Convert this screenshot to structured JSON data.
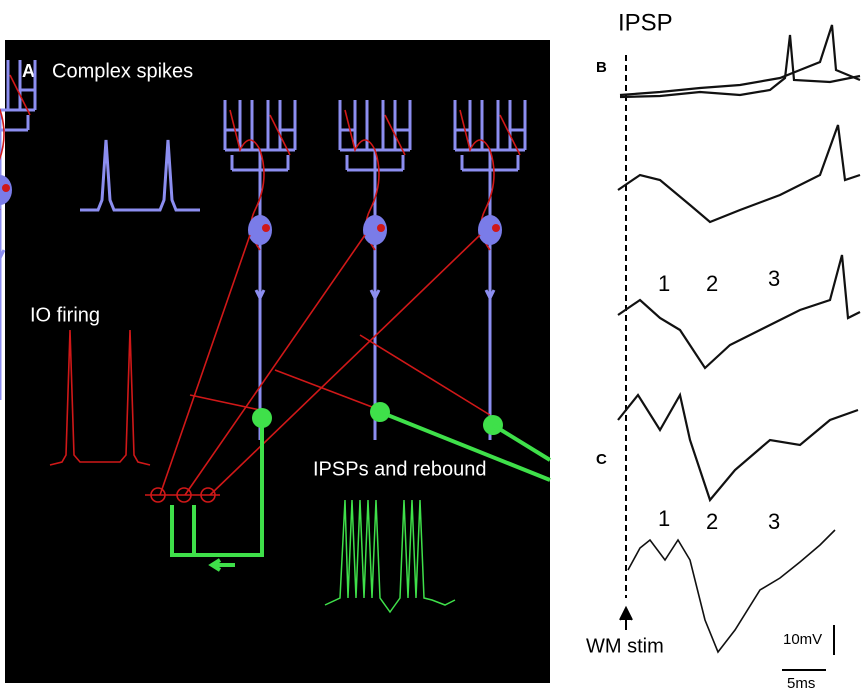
{
  "panel_a": {
    "label": "A",
    "title": "Complex spikes",
    "io_label": "IO firing",
    "ipsp_label": "IPSPs and rebound"
  },
  "panel_b": {
    "title": "IPSP",
    "label": "B",
    "peaks": [
      "1",
      "2",
      "3"
    ]
  },
  "panel_c": {
    "label": "C",
    "peaks": [
      "1",
      "2",
      "3"
    ],
    "stimulus": "WM stim",
    "scale_voltage": "10mV",
    "scale_time": "5ms"
  }
}
